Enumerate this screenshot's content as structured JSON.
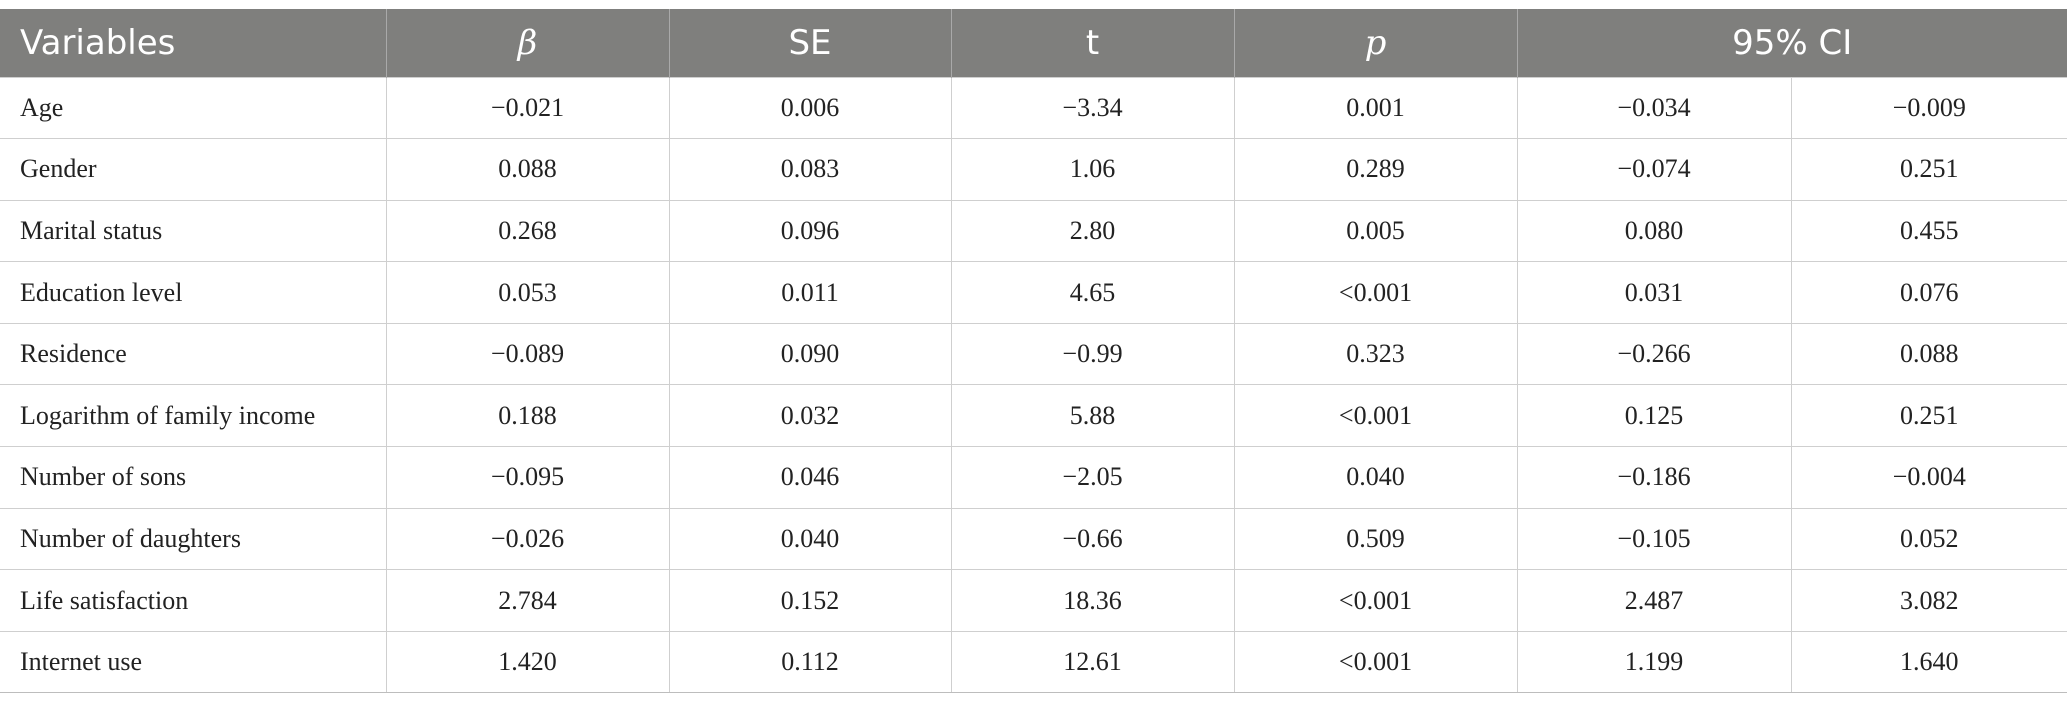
{
  "table": {
    "headers": {
      "variables": "Variables",
      "beta": "β",
      "se": "SE",
      "t": "t",
      "p": "p",
      "ci": "95% CI"
    },
    "rows": [
      {
        "variable": "Age",
        "beta": "−0.021",
        "se": "0.006",
        "t": "−3.34",
        "p": "0.001",
        "ci_lower": "−0.034",
        "ci_upper": "−0.009"
      },
      {
        "variable": "Gender",
        "beta": "0.088",
        "se": "0.083",
        "t": "1.06",
        "p": "0.289",
        "ci_lower": "−0.074",
        "ci_upper": "0.251"
      },
      {
        "variable": "Marital status",
        "beta": "0.268",
        "se": "0.096",
        "t": "2.80",
        "p": "0.005",
        "ci_lower": "0.080",
        "ci_upper": "0.455"
      },
      {
        "variable": "Education level",
        "beta": "0.053",
        "se": "0.011",
        "t": "4.65",
        "p": "<0.001",
        "ci_lower": "0.031",
        "ci_upper": "0.076"
      },
      {
        "variable": "Residence",
        "beta": "−0.089",
        "se": "0.090",
        "t": "−0.99",
        "p": "0.323",
        "ci_lower": "−0.266",
        "ci_upper": "0.088"
      },
      {
        "variable": "Logarithm of family income",
        "beta": "0.188",
        "se": "0.032",
        "t": "5.88",
        "p": "<0.001",
        "ci_lower": "0.125",
        "ci_upper": "0.251"
      },
      {
        "variable": "Number of sons",
        "beta": "−0.095",
        "se": "0.046",
        "t": "−2.05",
        "p": "0.040",
        "ci_lower": "−0.186",
        "ci_upper": "−0.004"
      },
      {
        "variable": "Number of daughters",
        "beta": "−0.026",
        "se": "0.040",
        "t": "−0.66",
        "p": "0.509",
        "ci_lower": "−0.105",
        "ci_upper": "0.052"
      },
      {
        "variable": "Life satisfaction",
        "beta": "2.784",
        "se": "0.152",
        "t": "18.36",
        "p": "<0.001",
        "ci_lower": "2.487",
        "ci_upper": "3.082"
      },
      {
        "variable": "Internet use",
        "beta": "1.420",
        "se": "0.112",
        "t": "12.61",
        "p": "<0.001",
        "ci_lower": "1.199",
        "ci_upper": "1.640"
      }
    ]
  },
  "colors": {
    "header_background": "#7f7f7d",
    "header_text": "#ffffff",
    "grid_line": "#cfcfcf",
    "body_text": "#222222"
  }
}
